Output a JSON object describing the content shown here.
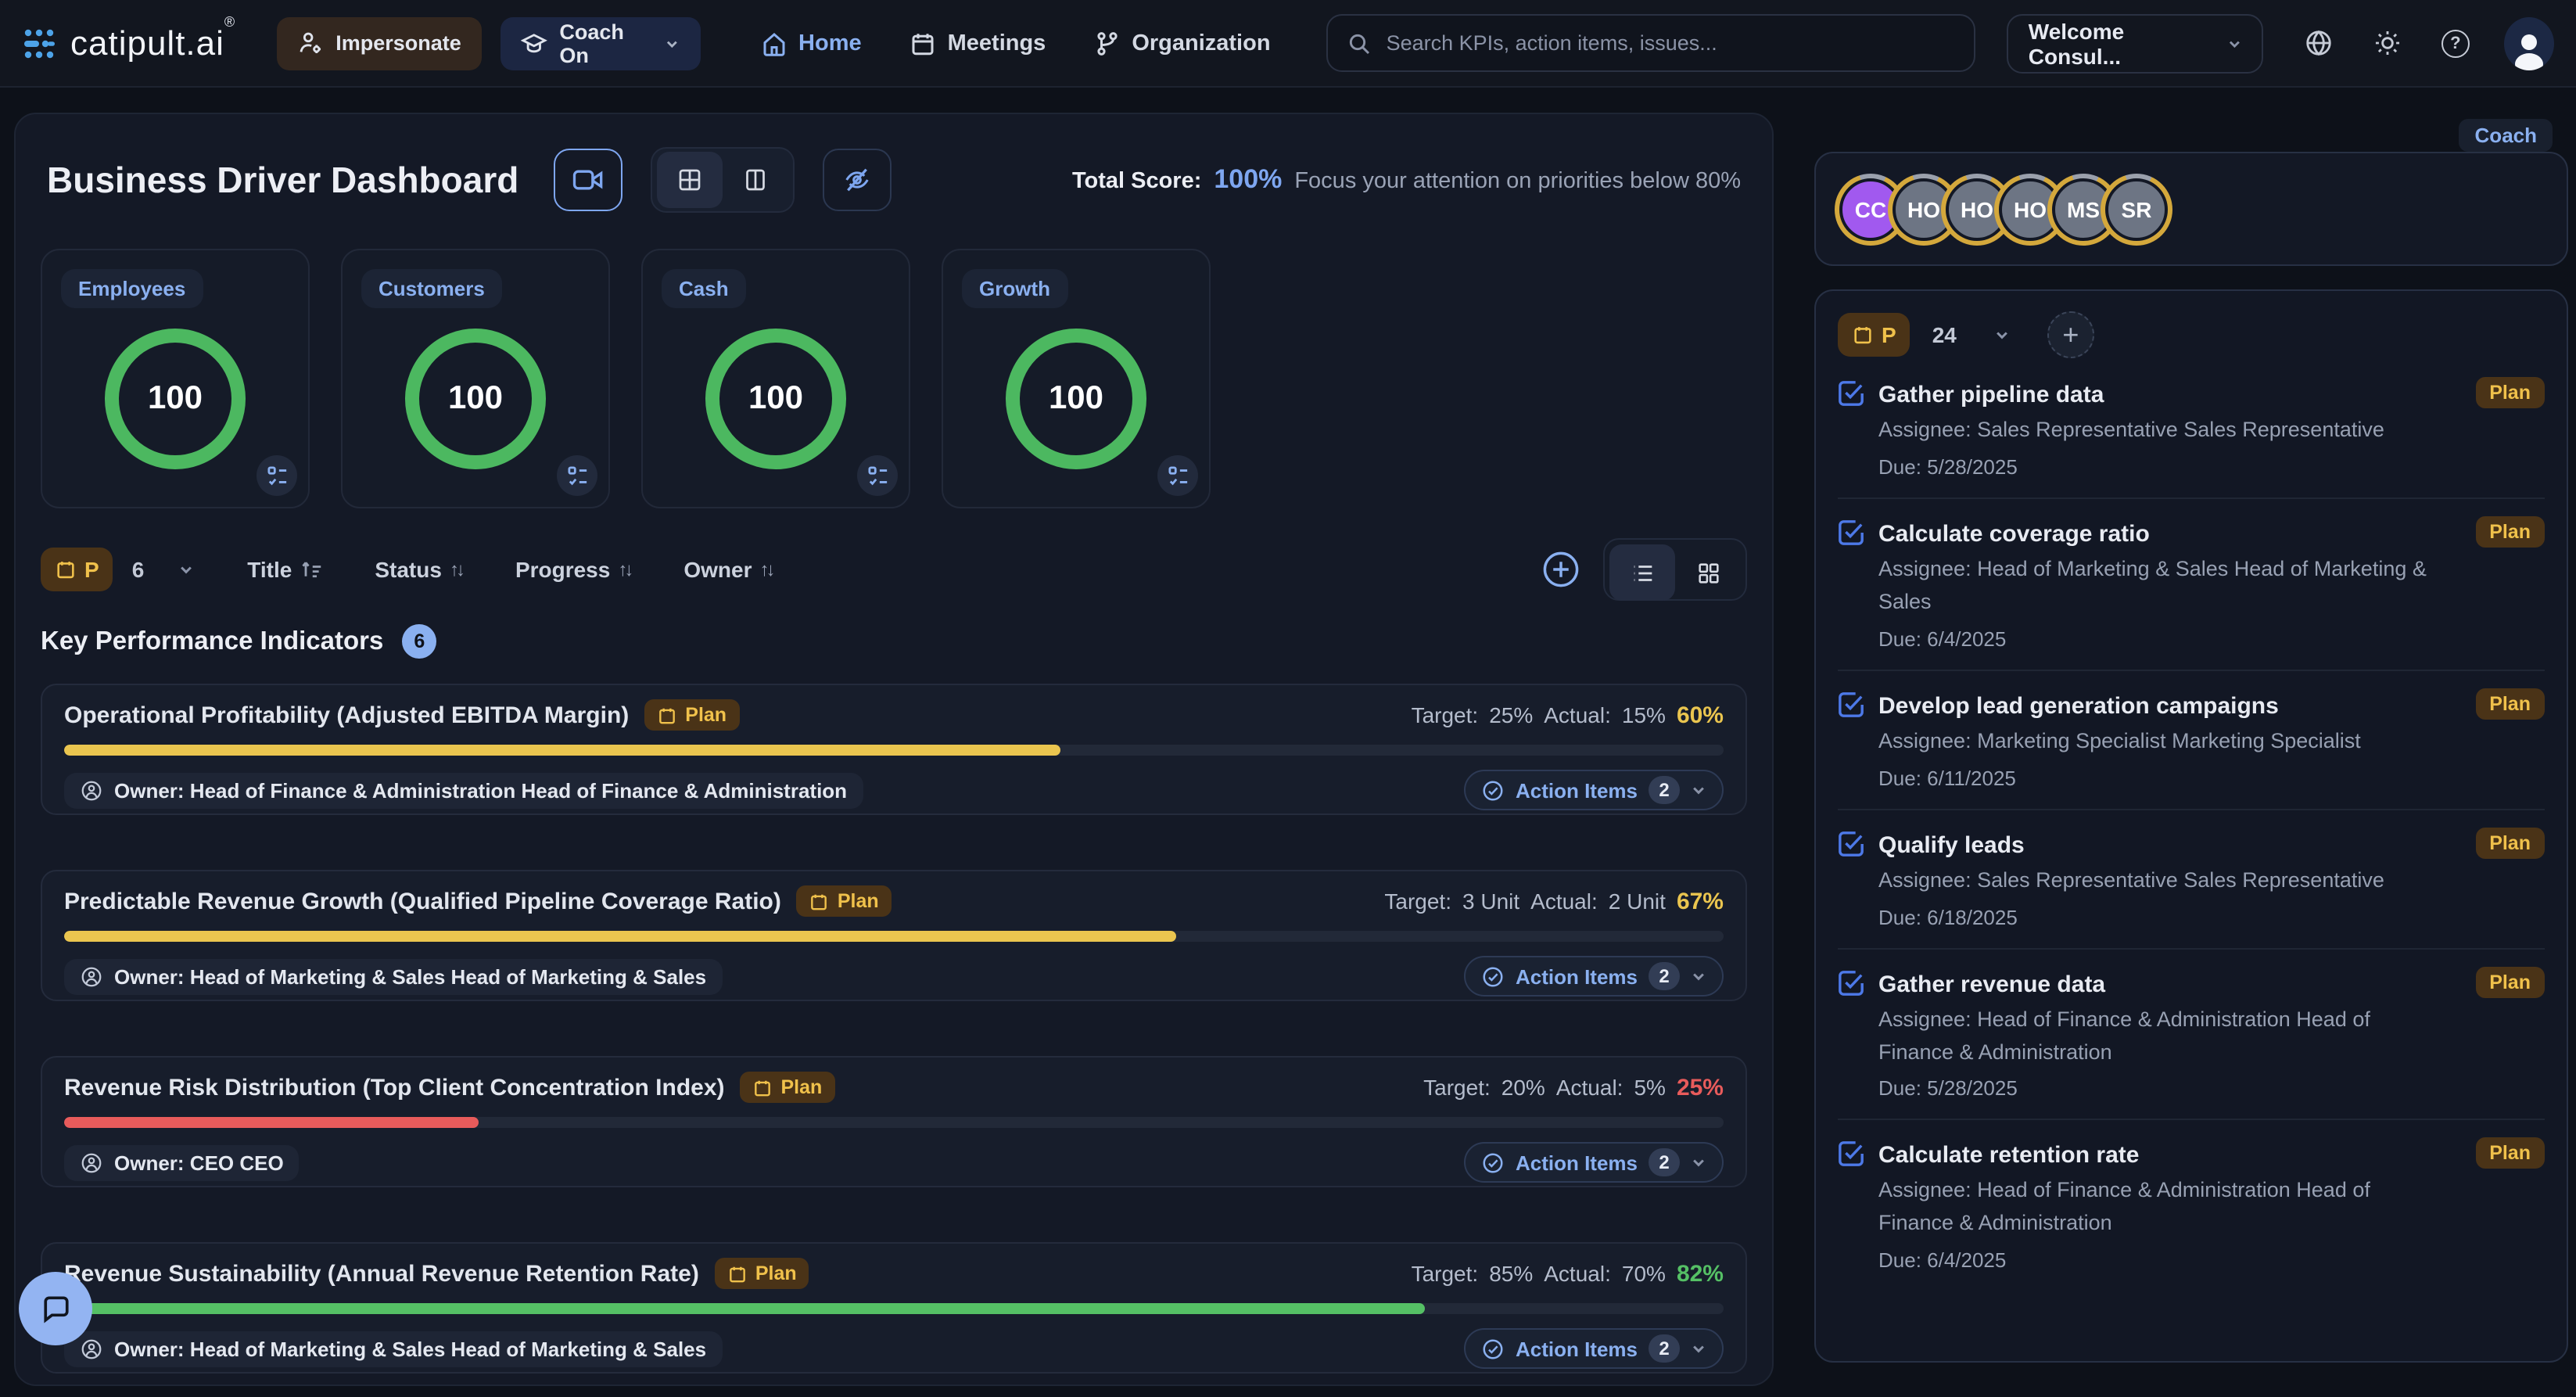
{
  "nav": {
    "logo": "catipult.ai",
    "logo_reg": "®",
    "impersonate_label": "Impersonate",
    "coach_toggle_label": "Coach On",
    "links": [
      {
        "label": "Home"
      },
      {
        "label": "Meetings"
      },
      {
        "label": "Organization"
      }
    ],
    "search_placeholder": "Search KPIs, action items, issues...",
    "account_label": "Welcome Consul...",
    "help_glyph": "?"
  },
  "dashboard": {
    "title": "Business Driver Dashboard",
    "total_score_label": "Total Score:",
    "total_score_value": "100%",
    "total_score_hint": "Focus your attention on priorities below 80%",
    "score_cards": [
      {
        "label": "Employees",
        "score": "100"
      },
      {
        "label": "Customers",
        "score": "100"
      },
      {
        "label": "Cash",
        "score": "100"
      },
      {
        "label": "Growth",
        "score": "100"
      }
    ],
    "filter": {
      "badge": "P",
      "count": "6",
      "sorts": [
        "Title",
        "Status",
        "Progress",
        "Owner"
      ]
    },
    "kpi_section_title": "Key Performance Indicators",
    "kpi_count": "6",
    "kpis": [
      {
        "title": "Operational Profitability (Adjusted EBITDA Margin)",
        "badge": "Plan",
        "target_label": "Target:",
        "target": "25%",
        "actual_label": "Actual:",
        "actual": "15%",
        "score": "60%",
        "score_color": "#eac54f",
        "progress": 60,
        "bar_color": "#eac54f",
        "owner": "Owner: Head of Finance & Administration Head of Finance & Administration",
        "action_items_label": "Action Items",
        "action_items_count": "2"
      },
      {
        "title": "Predictable Revenue Growth (Qualified Pipeline Coverage Ratio)",
        "badge": "Plan",
        "target_label": "Target:",
        "target": "3 Unit",
        "actual_label": "Actual:",
        "actual": "2 Unit",
        "score": "67%",
        "score_color": "#eac54f",
        "progress": 67,
        "bar_color": "#eac54f",
        "owner": "Owner: Head of Marketing & Sales Head of Marketing & Sales",
        "action_items_label": "Action Items",
        "action_items_count": "2"
      },
      {
        "title": "Revenue Risk Distribution (Top Client Concentration Index)",
        "badge": "Plan",
        "target_label": "Target:",
        "target": "20%",
        "actual_label": "Actual:",
        "actual": "5%",
        "score": "25%",
        "score_color": "#e85b5b",
        "progress": 25,
        "bar_color": "#e85b5b",
        "owner": "Owner: CEO CEO",
        "action_items_label": "Action Items",
        "action_items_count": "2"
      },
      {
        "title": "Revenue Sustainability (Annual Revenue Retention Rate)",
        "badge": "Plan",
        "target_label": "Target:",
        "target": "85%",
        "actual_label": "Actual:",
        "actual": "70%",
        "score": "82%",
        "score_color": "#55c065",
        "progress": 82,
        "bar_color": "#55c065",
        "owner": "Owner: Head of Marketing & Sales Head of Marketing & Sales",
        "action_items_label": "Action Items",
        "action_items_count": "2"
      }
    ]
  },
  "sidebar": {
    "coach_label": "Coach",
    "avatars": [
      {
        "initials": "CC",
        "bg": "#a159ef"
      },
      {
        "initials": "HO",
        "bg": "#6d7584"
      },
      {
        "initials": "HO",
        "bg": "#6d7584"
      },
      {
        "initials": "HO",
        "bg": "#6d7584"
      },
      {
        "initials": "MS",
        "bg": "#6d7584"
      },
      {
        "initials": "SR",
        "bg": "#6d7584"
      }
    ],
    "list_badge": "P",
    "list_count": "24",
    "tasks": [
      {
        "title": "Gather pipeline data",
        "badge": "Plan",
        "assignee": "Assignee: Sales Representative Sales Representative",
        "due": "Due: 5/28/2025"
      },
      {
        "title": "Calculate coverage ratio",
        "badge": "Plan",
        "assignee": "Assignee: Head of Marketing & Sales Head of Marketing & Sales",
        "due": "Due: 6/4/2025"
      },
      {
        "title": "Develop lead generation campaigns",
        "badge": "Plan",
        "assignee": "Assignee: Marketing Specialist Marketing Specialist",
        "due": "Due: 6/11/2025"
      },
      {
        "title": "Qualify leads",
        "badge": "Plan",
        "assignee": "Assignee: Sales Representative Sales Representative",
        "due": "Due: 6/18/2025"
      },
      {
        "title": "Gather revenue data",
        "badge": "Plan",
        "assignee": "Assignee: Head of Finance & Administration Head of Finance & Administration",
        "due": "Due: 5/28/2025"
      },
      {
        "title": "Calculate retention rate",
        "badge": "Plan",
        "assignee": "Assignee: Head of Finance & Administration Head of Finance & Administration",
        "due": "Due: 6/4/2025"
      }
    ]
  },
  "colors": {
    "accent_blue": "#8ab0f0",
    "amber": "#eac54f",
    "green": "#4cb860",
    "red": "#e85b5b",
    "purple": "#a159ef",
    "gold_ring": "#d4a83c",
    "plan_bg": "#4a3317",
    "plan_text": "#f0c14b"
  }
}
